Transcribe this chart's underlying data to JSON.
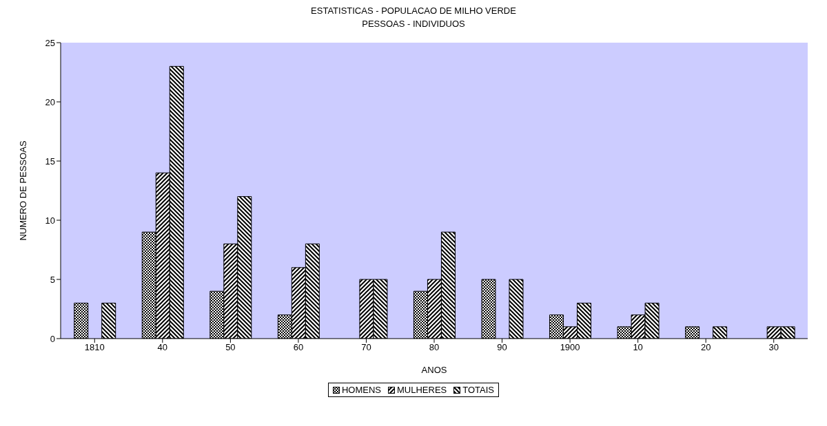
{
  "chart_data": {
    "type": "bar",
    "title": "ESTATISTICAS - POPULACAO DE MILHO VERDE",
    "subtitle": "PESSOAS - INDIVIDUOS",
    "xlabel": "ANOS",
    "ylabel": "NUMERO DE PESSOAS",
    "categories": [
      "1810",
      "40",
      "50",
      "60",
      "70",
      "80",
      "90",
      "1900",
      "10",
      "20",
      "30"
    ],
    "series": [
      {
        "name": "HOMENS",
        "color": "#000000",
        "values": [
          3,
          9,
          4,
          2,
          0,
          4,
          5,
          2,
          1,
          1,
          0
        ]
      },
      {
        "name": "MULHERES",
        "color": "#000000",
        "values": [
          0,
          14,
          8,
          6,
          5,
          5,
          0,
          1,
          2,
          0,
          1
        ]
      },
      {
        "name": "TOTAIS",
        "color": "#000000",
        "values": [
          3,
          23,
          12,
          8,
          5,
          9,
          5,
          3,
          3,
          1,
          1
        ]
      }
    ],
    "ylim": [
      0,
      25
    ],
    "yticks": [
      0,
      5,
      10,
      15,
      20,
      25
    ],
    "grid": false,
    "legend": "bottom"
  }
}
